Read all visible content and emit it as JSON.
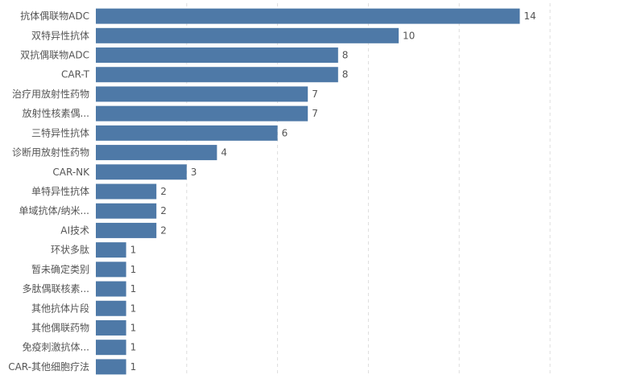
{
  "chart_data": {
    "type": "bar",
    "orientation": "horizontal",
    "categories": [
      "抗体偶联物ADC",
      "双特异性抗体",
      "双抗偶联物ADC",
      "CAR-T",
      "治疗用放射性药物",
      "放射性核素偶...",
      "三特异性抗体",
      "诊断用放射性药物",
      "CAR-NK",
      "单特异性抗体",
      "单域抗体/纳米...",
      "AI技术",
      "环状多肽",
      "暂未确定类别",
      "多肽偶联核素...",
      "其他抗体片段",
      "其他偶联药物",
      "免疫刺激抗体...",
      "CAR-其他细胞疗法"
    ],
    "values": [
      14,
      10,
      8,
      8,
      7,
      7,
      6,
      4,
      3,
      2,
      2,
      2,
      1,
      1,
      1,
      1,
      1,
      1,
      1
    ],
    "title": "",
    "xlabel": "",
    "ylabel": "",
    "xlim": [
      0,
      17.5
    ],
    "grid": "vertical-dashed",
    "bar_color": "#4e79a7",
    "label_color": "#555555",
    "value_color": "#555555",
    "grid_color": "#dddddd"
  }
}
